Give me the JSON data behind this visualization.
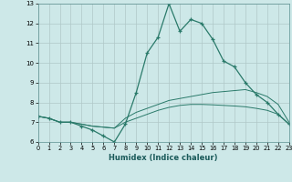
{
  "xlabel": "Humidex (Indice chaleur)",
  "background_color": "#cde8e8",
  "grid_color": "#b0c8c8",
  "line_color": "#2a7a6a",
  "xlim": [
    0,
    23
  ],
  "ylim": [
    6,
    13
  ],
  "xticks": [
    0,
    1,
    2,
    3,
    4,
    5,
    6,
    7,
    8,
    9,
    10,
    11,
    12,
    13,
    14,
    15,
    16,
    17,
    18,
    19,
    20,
    21,
    22,
    23
  ],
  "yticks": [
    6,
    7,
    8,
    9,
    10,
    11,
    12,
    13
  ],
  "series1_x": [
    0,
    1,
    2,
    3,
    4,
    5,
    6,
    7,
    8,
    9,
    10,
    11,
    12,
    13,
    14,
    15,
    16,
    17,
    18,
    19,
    20,
    21,
    22,
    23
  ],
  "series1_y": [
    7.3,
    7.2,
    7.0,
    7.0,
    6.8,
    6.6,
    6.3,
    6.0,
    6.9,
    8.5,
    10.5,
    11.3,
    13.0,
    11.6,
    12.2,
    12.0,
    11.2,
    10.1,
    9.8,
    9.0,
    8.4,
    8.0,
    7.4,
    6.9
  ],
  "series2_x": [
    0,
    1,
    2,
    3,
    4,
    5,
    6,
    7,
    8,
    9,
    10,
    11,
    12,
    13,
    14,
    15,
    16,
    17,
    18,
    19,
    20,
    21,
    22,
    23
  ],
  "series2_y": [
    7.3,
    7.2,
    7.0,
    7.0,
    6.9,
    6.8,
    6.75,
    6.7,
    7.2,
    7.5,
    7.7,
    7.9,
    8.1,
    8.2,
    8.3,
    8.4,
    8.5,
    8.55,
    8.6,
    8.65,
    8.5,
    8.3,
    7.9,
    7.0
  ],
  "series3_x": [
    0,
    1,
    2,
    3,
    4,
    5,
    6,
    7,
    8,
    9,
    10,
    11,
    12,
    13,
    14,
    15,
    16,
    17,
    18,
    19,
    20,
    21,
    22,
    23
  ],
  "series3_y": [
    7.3,
    7.2,
    7.0,
    7.0,
    6.9,
    6.8,
    6.75,
    6.7,
    7.0,
    7.2,
    7.4,
    7.6,
    7.75,
    7.85,
    7.9,
    7.9,
    7.88,
    7.85,
    7.82,
    7.78,
    7.7,
    7.6,
    7.4,
    6.9
  ]
}
